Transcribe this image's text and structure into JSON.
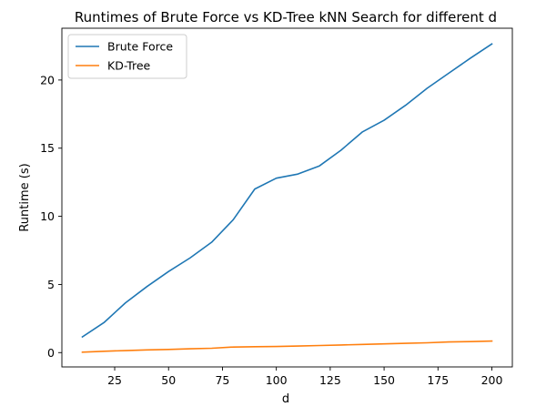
{
  "chart_data": {
    "type": "line",
    "title": "Runtimes of Brute Force vs KD-Tree kNN Search for different d",
    "xlabel": "d",
    "ylabel": "Runtime (s)",
    "xlim": [
      0.5,
      209.5
    ],
    "ylim": [
      -1.05,
      23.8
    ],
    "xticks": [
      25,
      50,
      75,
      100,
      125,
      150,
      175,
      200
    ],
    "yticks": [
      0,
      5,
      10,
      15,
      20
    ],
    "grid": false,
    "legend_position": "top-left",
    "x": [
      10,
      20,
      30,
      40,
      50,
      60,
      70,
      80,
      90,
      100,
      110,
      120,
      130,
      140,
      150,
      160,
      170,
      180,
      190,
      200
    ],
    "series": [
      {
        "name": "Brute Force",
        "color": "#1f77b4",
        "values": [
          1.15,
          2.2,
          3.65,
          4.85,
          5.95,
          6.95,
          8.1,
          9.75,
          12.0,
          12.8,
          13.1,
          13.7,
          14.85,
          16.2,
          17.05,
          18.15,
          19.4,
          20.5,
          21.6,
          22.65
        ]
      },
      {
        "name": "KD-Tree",
        "color": "#ff7f0e",
        "values": [
          0.03,
          0.1,
          0.15,
          0.2,
          0.23,
          0.28,
          0.32,
          0.41,
          0.43,
          0.45,
          0.48,
          0.52,
          0.56,
          0.6,
          0.64,
          0.68,
          0.72,
          0.78,
          0.81,
          0.85
        ]
      }
    ]
  }
}
